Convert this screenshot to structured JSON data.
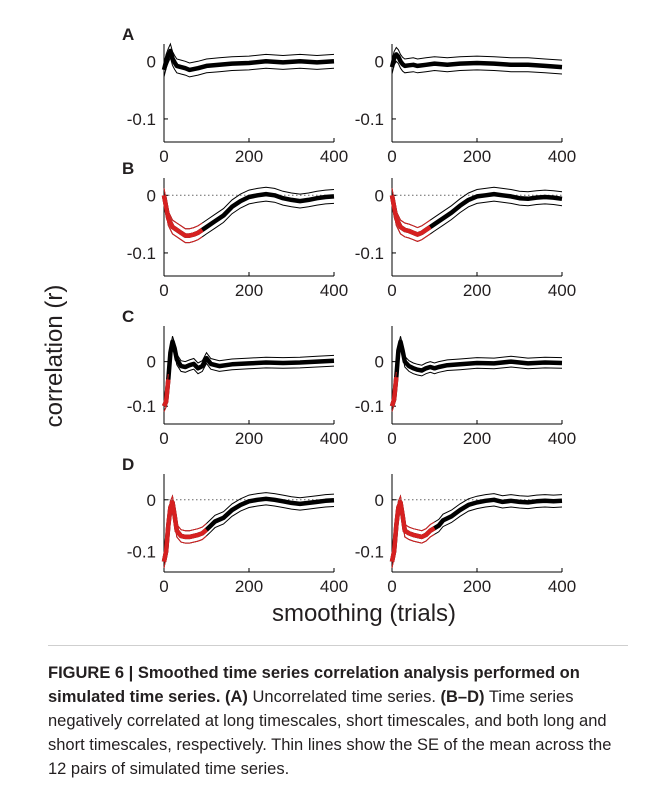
{
  "figure": {
    "ylabel": "correlation (r)",
    "xlabel": "smoothing (trials)",
    "yticks": [
      "0",
      "-0.1"
    ],
    "xticks": [
      "0",
      "200",
      "400"
    ],
    "panels": [
      "A",
      "B",
      "C",
      "D"
    ]
  },
  "caption": {
    "label": "FIGURE 6 | Smoothed time series correlation analysis performed on simulated time series.",
    "a_label": "(A)",
    "a_text": "Uncorrelated time series.",
    "bd_label": "(B–D)",
    "bd_text": "Time series negatively correlated at long timescales, short timescales, and both long and short timescales, respectively. Thin lines show the SE of the mean across the 12 pairs of simulated time series."
  },
  "colors": {
    "mean": "#000000",
    "negative": "#d62020",
    "zero_line": "#666666"
  },
  "chart_data": [
    {
      "panel": "A",
      "type": "line",
      "xlim": [
        0,
        400
      ],
      "ylim": [
        -0.14,
        0.03
      ],
      "x": [
        0,
        5,
        10,
        15,
        20,
        25,
        30,
        40,
        50,
        60,
        80,
        100,
        130,
        160,
        200,
        240,
        280,
        320,
        360,
        400
      ],
      "y": [
        -0.015,
        0.0,
        0.01,
        0.018,
        0.005,
        -0.002,
        -0.008,
        -0.01,
        -0.012,
        -0.015,
        -0.012,
        -0.008,
        -0.006,
        -0.004,
        -0.003,
        0.0,
        -0.002,
        0.0,
        -0.002,
        0.0
      ],
      "grid": false
    },
    {
      "panel": "A2",
      "type": "line",
      "xlim": [
        0,
        400
      ],
      "ylim": [
        -0.14,
        0.03
      ],
      "x": [
        0,
        5,
        10,
        15,
        20,
        25,
        30,
        40,
        50,
        60,
        80,
        100,
        130,
        160,
        200,
        240,
        280,
        320,
        360,
        400
      ],
      "y": [
        -0.01,
        0.005,
        0.012,
        0.008,
        0.0,
        -0.005,
        -0.008,
        -0.007,
        -0.006,
        -0.008,
        -0.006,
        -0.004,
        -0.006,
        -0.004,
        -0.003,
        -0.004,
        -0.006,
        -0.006,
        -0.008,
        -0.01
      ],
      "grid": false
    },
    {
      "panel": "B",
      "type": "line",
      "xlim": [
        0,
        400
      ],
      "ylim": [
        -0.14,
        0.03
      ],
      "x": [
        0,
        5,
        10,
        20,
        30,
        40,
        50,
        60,
        70,
        80,
        90,
        100,
        120,
        140,
        160,
        180,
        200,
        220,
        240,
        260,
        280,
        300,
        320,
        340,
        360,
        380,
        400
      ],
      "y": [
        0.0,
        -0.02,
        -0.04,
        -0.055,
        -0.06,
        -0.065,
        -0.07,
        -0.07,
        -0.068,
        -0.065,
        -0.06,
        -0.055,
        -0.045,
        -0.035,
        -0.02,
        -0.01,
        -0.003,
        0.0,
        0.002,
        0.0,
        -0.005,
        -0.008,
        -0.01,
        -0.008,
        -0.005,
        -0.003,
        -0.002
      ],
      "neg_until": 90,
      "grid": false
    },
    {
      "panel": "B2",
      "type": "line",
      "xlim": [
        0,
        400
      ],
      "ylim": [
        -0.14,
        0.03
      ],
      "x": [
        0,
        5,
        10,
        20,
        30,
        40,
        50,
        60,
        70,
        80,
        90,
        100,
        120,
        140,
        160,
        180,
        200,
        220,
        240,
        260,
        280,
        300,
        320,
        340,
        360,
        380,
        400
      ],
      "y": [
        0.0,
        -0.02,
        -0.04,
        -0.055,
        -0.06,
        -0.062,
        -0.065,
        -0.068,
        -0.065,
        -0.06,
        -0.055,
        -0.05,
        -0.04,
        -0.03,
        -0.018,
        -0.008,
        -0.002,
        0.0,
        0.002,
        0.0,
        -0.002,
        -0.005,
        -0.006,
        -0.004,
        -0.003,
        -0.004,
        -0.006
      ],
      "neg_until": 90,
      "grid": false
    },
    {
      "panel": "C",
      "type": "line",
      "xlim": [
        0,
        400
      ],
      "ylim": [
        -0.14,
        0.08
      ],
      "x": [
        0,
        5,
        10,
        15,
        20,
        25,
        30,
        40,
        50,
        60,
        70,
        80,
        90,
        100,
        110,
        130,
        160,
        200,
        240,
        280,
        320,
        360,
        400
      ],
      "y": [
        -0.1,
        -0.09,
        -0.04,
        0.02,
        0.045,
        0.03,
        0.005,
        -0.01,
        -0.012,
        -0.008,
        -0.005,
        -0.015,
        -0.01,
        0.008,
        -0.005,
        -0.01,
        -0.006,
        -0.004,
        -0.002,
        -0.003,
        -0.002,
        0.0,
        0.002
      ],
      "neg_until": 12,
      "grid": false
    },
    {
      "panel": "C2",
      "type": "line",
      "xlim": [
        0,
        400
      ],
      "ylim": [
        -0.14,
        0.08
      ],
      "x": [
        0,
        5,
        10,
        15,
        20,
        25,
        30,
        40,
        50,
        60,
        70,
        80,
        90,
        100,
        110,
        130,
        160,
        200,
        240,
        280,
        320,
        360,
        400
      ],
      "y": [
        -0.1,
        -0.085,
        -0.035,
        0.025,
        0.045,
        0.025,
        0.0,
        -0.01,
        -0.015,
        -0.018,
        -0.02,
        -0.015,
        -0.012,
        -0.015,
        -0.012,
        -0.008,
        -0.006,
        -0.003,
        -0.004,
        0.0,
        -0.004,
        -0.002,
        -0.003
      ],
      "neg_until": 12,
      "grid": false
    },
    {
      "panel": "D",
      "type": "line",
      "xlim": [
        0,
        400
      ],
      "ylim": [
        -0.14,
        0.05
      ],
      "x": [
        0,
        5,
        10,
        15,
        20,
        25,
        30,
        40,
        50,
        60,
        70,
        80,
        90,
        100,
        110,
        120,
        140,
        160,
        180,
        200,
        220,
        240,
        260,
        280,
        300,
        320,
        340,
        360,
        380,
        400
      ],
      "y": [
        -0.12,
        -0.1,
        -0.05,
        -0.015,
        -0.005,
        -0.03,
        -0.06,
        -0.07,
        -0.072,
        -0.072,
        -0.07,
        -0.068,
        -0.065,
        -0.058,
        -0.05,
        -0.042,
        -0.035,
        -0.02,
        -0.01,
        -0.003,
        0.0,
        0.002,
        0.0,
        -0.003,
        -0.006,
        -0.008,
        -0.006,
        -0.004,
        -0.002,
        -0.001
      ],
      "neg_until": 100,
      "grid": false
    },
    {
      "panel": "D2",
      "type": "line",
      "xlim": [
        0,
        400
      ],
      "ylim": [
        -0.14,
        0.05
      ],
      "x": [
        0,
        5,
        10,
        15,
        20,
        25,
        30,
        40,
        50,
        60,
        70,
        80,
        90,
        100,
        110,
        120,
        140,
        160,
        180,
        200,
        220,
        240,
        260,
        280,
        300,
        320,
        340,
        360,
        380,
        400
      ],
      "y": [
        -0.12,
        -0.1,
        -0.05,
        -0.015,
        -0.005,
        -0.03,
        -0.06,
        -0.065,
        -0.068,
        -0.07,
        -0.072,
        -0.068,
        -0.06,
        -0.055,
        -0.05,
        -0.04,
        -0.032,
        -0.02,
        -0.01,
        -0.005,
        -0.002,
        0.0,
        -0.004,
        -0.002,
        -0.004,
        -0.005,
        -0.003,
        -0.002,
        -0.003,
        -0.002
      ],
      "neg_until": 100,
      "grid": false
    }
  ]
}
